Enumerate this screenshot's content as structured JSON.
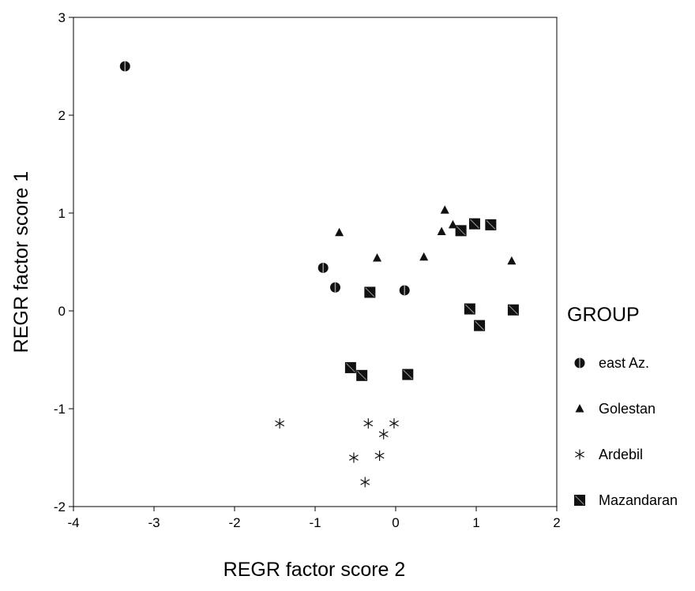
{
  "chart_data": {
    "type": "scatter",
    "title": "",
    "xlabel": "REGR factor score 2",
    "ylabel": "REGR factor score 1",
    "xlim": [
      -4,
      2
    ],
    "ylim": [
      -2,
      3
    ],
    "xticks": [
      -4,
      -3,
      -2,
      -1,
      0,
      1,
      2
    ],
    "yticks": [
      -2,
      -1,
      0,
      1,
      2,
      3
    ],
    "grid": false,
    "legend_title": "GROUP",
    "legend_position": "right",
    "series": [
      {
        "name": "east Az.",
        "marker": "circle",
        "points": [
          {
            "x": -3.36,
            "y": 2.5
          },
          {
            "x": -0.9,
            "y": 0.44
          },
          {
            "x": -0.75,
            "y": 0.24
          },
          {
            "x": 0.11,
            "y": 0.21
          }
        ]
      },
      {
        "name": "Golestan",
        "marker": "triangle",
        "points": [
          {
            "x": -0.7,
            "y": 0.8
          },
          {
            "x": -0.23,
            "y": 0.54
          },
          {
            "x": 0.35,
            "y": 0.55
          },
          {
            "x": 0.57,
            "y": 0.81
          },
          {
            "x": 0.61,
            "y": 1.03
          },
          {
            "x": 0.71,
            "y": 0.88
          },
          {
            "x": 1.44,
            "y": 0.51
          }
        ]
      },
      {
        "name": "Ardebil",
        "marker": "asterisk",
        "points": [
          {
            "x": -1.44,
            "y": -1.15
          },
          {
            "x": -0.34,
            "y": -1.15
          },
          {
            "x": -0.02,
            "y": -1.15
          },
          {
            "x": -0.15,
            "y": -1.26
          },
          {
            "x": -0.52,
            "y": -1.5
          },
          {
            "x": -0.2,
            "y": -1.48
          },
          {
            "x": -0.38,
            "y": -1.75
          }
        ]
      },
      {
        "name": "Mazandaran",
        "marker": "square",
        "points": [
          {
            "x": -0.32,
            "y": 0.19
          },
          {
            "x": -0.56,
            "y": -0.58
          },
          {
            "x": -0.42,
            "y": -0.66
          },
          {
            "x": 0.15,
            "y": -0.65
          },
          {
            "x": 0.81,
            "y": 0.82
          },
          {
            "x": 0.98,
            "y": 0.89
          },
          {
            "x": 1.18,
            "y": 0.88
          },
          {
            "x": 0.92,
            "y": 0.02
          },
          {
            "x": 1.04,
            "y": -0.15
          },
          {
            "x": 1.46,
            "y": 0.01
          }
        ]
      }
    ],
    "colors": {
      "marker_fill": "#111111",
      "marker_highlight": "#9a9a9a",
      "axis": "#000000",
      "background": "#ffffff"
    }
  }
}
